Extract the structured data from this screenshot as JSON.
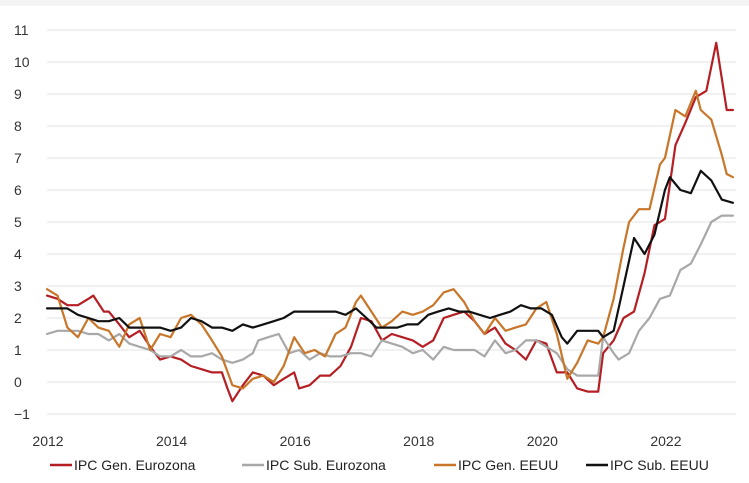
{
  "chart_data": {
    "type": "line",
    "title": "",
    "xlabel": "",
    "ylabel": "",
    "xlim": [
      2012,
      2023.15
    ],
    "ylim": [
      -1,
      11
    ],
    "y_ticks": [
      -1,
      0,
      1,
      2,
      3,
      4,
      5,
      6,
      7,
      8,
      9,
      10,
      11
    ],
    "x_ticks": [
      2012,
      2014,
      2016,
      2018,
      2020,
      2022
    ],
    "grid": "horizontal",
    "legend_position": "bottom",
    "series": [
      {
        "name": "IPC Gen. Eurozona",
        "color": "#b51f24",
        "points": [
          [
            2012.0,
            2.7
          ],
          [
            2012.17,
            2.6
          ],
          [
            2012.33,
            2.4
          ],
          [
            2012.5,
            2.4
          ],
          [
            2012.67,
            2.6
          ],
          [
            2012.75,
            2.7
          ],
          [
            2012.92,
            2.2
          ],
          [
            2013.0,
            2.2
          ],
          [
            2013.17,
            1.8
          ],
          [
            2013.33,
            1.4
          ],
          [
            2013.5,
            1.6
          ],
          [
            2013.67,
            1.1
          ],
          [
            2013.83,
            0.7
          ],
          [
            2014.0,
            0.8
          ],
          [
            2014.17,
            0.7
          ],
          [
            2014.33,
            0.5
          ],
          [
            2014.5,
            0.4
          ],
          [
            2014.67,
            0.3
          ],
          [
            2014.83,
            0.3
          ],
          [
            2014.92,
            -0.2
          ],
          [
            2015.0,
            -0.6
          ],
          [
            2015.17,
            -0.1
          ],
          [
            2015.33,
            0.3
          ],
          [
            2015.5,
            0.2
          ],
          [
            2015.67,
            -0.1
          ],
          [
            2015.83,
            0.1
          ],
          [
            2016.0,
            0.3
          ],
          [
            2016.08,
            -0.2
          ],
          [
            2016.25,
            -0.1
          ],
          [
            2016.42,
            0.2
          ],
          [
            2016.58,
            0.2
          ],
          [
            2016.75,
            0.5
          ],
          [
            2016.92,
            1.1
          ],
          [
            2017.08,
            2.0
          ],
          [
            2017.25,
            1.9
          ],
          [
            2017.42,
            1.3
          ],
          [
            2017.58,
            1.5
          ],
          [
            2017.75,
            1.4
          ],
          [
            2017.92,
            1.3
          ],
          [
            2018.08,
            1.1
          ],
          [
            2018.25,
            1.3
          ],
          [
            2018.42,
            2.0
          ],
          [
            2018.58,
            2.1
          ],
          [
            2018.75,
            2.2
          ],
          [
            2018.92,
            1.9
          ],
          [
            2019.08,
            1.5
          ],
          [
            2019.25,
            1.7
          ],
          [
            2019.42,
            1.2
          ],
          [
            2019.58,
            1.0
          ],
          [
            2019.75,
            0.7
          ],
          [
            2019.92,
            1.3
          ],
          [
            2020.08,
            1.2
          ],
          [
            2020.25,
            0.3
          ],
          [
            2020.42,
            0.3
          ],
          [
            2020.58,
            -0.2
          ],
          [
            2020.75,
            -0.3
          ],
          [
            2020.92,
            -0.3
          ],
          [
            2021.0,
            0.9
          ],
          [
            2021.17,
            1.3
          ],
          [
            2021.33,
            2.0
          ],
          [
            2021.5,
            2.2
          ],
          [
            2021.67,
            3.4
          ],
          [
            2021.83,
            4.9
          ],
          [
            2021.92,
            5.0
          ],
          [
            2022.0,
            5.1
          ],
          [
            2022.17,
            7.4
          ],
          [
            2022.33,
            8.1
          ],
          [
            2022.5,
            8.9
          ],
          [
            2022.67,
            9.1
          ],
          [
            2022.83,
            10.6
          ],
          [
            2023.0,
            8.5
          ],
          [
            2023.1,
            8.5
          ]
        ]
      },
      {
        "name": "IPC Sub. Eurozona",
        "color": "#a8a8a8",
        "points": [
          [
            2012.0,
            1.5
          ],
          [
            2012.17,
            1.6
          ],
          [
            2012.33,
            1.6
          ],
          [
            2012.5,
            1.6
          ],
          [
            2012.67,
            1.5
          ],
          [
            2012.83,
            1.5
          ],
          [
            2013.0,
            1.3
          ],
          [
            2013.17,
            1.5
          ],
          [
            2013.33,
            1.2
          ],
          [
            2013.5,
            1.1
          ],
          [
            2013.67,
            1.0
          ],
          [
            2013.83,
            0.8
          ],
          [
            2014.0,
            0.8
          ],
          [
            2014.17,
            1.0
          ],
          [
            2014.33,
            0.8
          ],
          [
            2014.5,
            0.8
          ],
          [
            2014.67,
            0.9
          ],
          [
            2014.83,
            0.7
          ],
          [
            2015.0,
            0.6
          ],
          [
            2015.17,
            0.7
          ],
          [
            2015.33,
            0.9
          ],
          [
            2015.42,
            1.3
          ],
          [
            2015.58,
            1.4
          ],
          [
            2015.75,
            1.5
          ],
          [
            2015.92,
            0.9
          ],
          [
            2016.08,
            1.0
          ],
          [
            2016.25,
            0.7
          ],
          [
            2016.42,
            0.9
          ],
          [
            2016.58,
            0.8
          ],
          [
            2016.75,
            0.8
          ],
          [
            2016.92,
            0.9
          ],
          [
            2017.08,
            0.9
          ],
          [
            2017.25,
            0.8
          ],
          [
            2017.42,
            1.3
          ],
          [
            2017.58,
            1.2
          ],
          [
            2017.75,
            1.1
          ],
          [
            2017.92,
            0.9
          ],
          [
            2018.08,
            1.0
          ],
          [
            2018.25,
            0.7
          ],
          [
            2018.42,
            1.1
          ],
          [
            2018.58,
            1.0
          ],
          [
            2018.75,
            1.0
          ],
          [
            2018.92,
            1.0
          ],
          [
            2019.08,
            0.8
          ],
          [
            2019.25,
            1.3
          ],
          [
            2019.42,
            0.9
          ],
          [
            2019.58,
            1.0
          ],
          [
            2019.75,
            1.3
          ],
          [
            2019.92,
            1.3
          ],
          [
            2020.08,
            1.1
          ],
          [
            2020.25,
            0.9
          ],
          [
            2020.42,
            0.4
          ],
          [
            2020.58,
            0.2
          ],
          [
            2020.75,
            0.2
          ],
          [
            2020.92,
            0.2
          ],
          [
            2021.0,
            1.4
          ],
          [
            2021.17,
            0.9
          ],
          [
            2021.25,
            0.7
          ],
          [
            2021.42,
            0.9
          ],
          [
            2021.58,
            1.6
          ],
          [
            2021.75,
            2.0
          ],
          [
            2021.92,
            2.6
          ],
          [
            2022.08,
            2.7
          ],
          [
            2022.25,
            3.5
          ],
          [
            2022.42,
            3.7
          ],
          [
            2022.58,
            4.3
          ],
          [
            2022.75,
            5.0
          ],
          [
            2022.92,
            5.2
          ],
          [
            2023.1,
            5.2
          ]
        ]
      },
      {
        "name": "IPC Gen. EEUU",
        "color": "#c8762a",
        "points": [
          [
            2012.0,
            2.9
          ],
          [
            2012.17,
            2.7
          ],
          [
            2012.33,
            1.7
          ],
          [
            2012.5,
            1.4
          ],
          [
            2012.67,
            2.0
          ],
          [
            2012.83,
            1.7
          ],
          [
            2013.0,
            1.6
          ],
          [
            2013.17,
            1.1
          ],
          [
            2013.33,
            1.8
          ],
          [
            2013.5,
            2.0
          ],
          [
            2013.67,
            1.0
          ],
          [
            2013.83,
            1.5
          ],
          [
            2014.0,
            1.4
          ],
          [
            2014.17,
            2.0
          ],
          [
            2014.33,
            2.1
          ],
          [
            2014.5,
            1.8
          ],
          [
            2014.67,
            1.3
          ],
          [
            2014.83,
            0.8
          ],
          [
            2015.0,
            -0.1
          ],
          [
            2015.17,
            -0.2
          ],
          [
            2015.33,
            0.1
          ],
          [
            2015.5,
            0.2
          ],
          [
            2015.67,
            0.0
          ],
          [
            2015.83,
            0.5
          ],
          [
            2016.0,
            1.4
          ],
          [
            2016.17,
            0.9
          ],
          [
            2016.33,
            1.0
          ],
          [
            2016.5,
            0.8
          ],
          [
            2016.67,
            1.5
          ],
          [
            2016.83,
            1.7
          ],
          [
            2017.0,
            2.5
          ],
          [
            2017.08,
            2.7
          ],
          [
            2017.25,
            2.2
          ],
          [
            2017.42,
            1.7
          ],
          [
            2017.58,
            1.9
          ],
          [
            2017.75,
            2.2
          ],
          [
            2017.92,
            2.1
          ],
          [
            2018.08,
            2.2
          ],
          [
            2018.25,
            2.4
          ],
          [
            2018.42,
            2.8
          ],
          [
            2018.58,
            2.9
          ],
          [
            2018.75,
            2.5
          ],
          [
            2018.92,
            1.9
          ],
          [
            2019.08,
            1.5
          ],
          [
            2019.25,
            2.0
          ],
          [
            2019.42,
            1.6
          ],
          [
            2019.58,
            1.7
          ],
          [
            2019.75,
            1.8
          ],
          [
            2019.92,
            2.3
          ],
          [
            2020.08,
            2.5
          ],
          [
            2020.25,
            1.5
          ],
          [
            2020.42,
            0.1
          ],
          [
            2020.58,
            0.6
          ],
          [
            2020.75,
            1.3
          ],
          [
            2020.92,
            1.2
          ],
          [
            2021.0,
            1.4
          ],
          [
            2021.17,
            2.6
          ],
          [
            2021.33,
            4.2
          ],
          [
            2021.42,
            5.0
          ],
          [
            2021.58,
            5.4
          ],
          [
            2021.75,
            5.4
          ],
          [
            2021.92,
            6.8
          ],
          [
            2022.0,
            7.0
          ],
          [
            2022.17,
            8.5
          ],
          [
            2022.33,
            8.3
          ],
          [
            2022.5,
            9.1
          ],
          [
            2022.58,
            8.5
          ],
          [
            2022.75,
            8.2
          ],
          [
            2022.92,
            7.1
          ],
          [
            2023.0,
            6.5
          ],
          [
            2023.1,
            6.4
          ]
        ]
      },
      {
        "name": "IPC Sub. EEUU",
        "color": "#111111",
        "points": [
          [
            2012.0,
            2.3
          ],
          [
            2012.17,
            2.3
          ],
          [
            2012.33,
            2.3
          ],
          [
            2012.5,
            2.1
          ],
          [
            2012.67,
            2.0
          ],
          [
            2012.83,
            1.9
          ],
          [
            2013.0,
            1.9
          ],
          [
            2013.17,
            2.0
          ],
          [
            2013.33,
            1.7
          ],
          [
            2013.5,
            1.7
          ],
          [
            2013.67,
            1.7
          ],
          [
            2013.83,
            1.7
          ],
          [
            2014.0,
            1.6
          ],
          [
            2014.17,
            1.7
          ],
          [
            2014.33,
            2.0
          ],
          [
            2014.5,
            1.9
          ],
          [
            2014.67,
            1.7
          ],
          [
            2014.83,
            1.7
          ],
          [
            2015.0,
            1.6
          ],
          [
            2015.17,
            1.8
          ],
          [
            2015.33,
            1.7
          ],
          [
            2015.5,
            1.8
          ],
          [
            2015.67,
            1.9
          ],
          [
            2015.83,
            2.0
          ],
          [
            2016.0,
            2.2
          ],
          [
            2016.17,
            2.2
          ],
          [
            2016.33,
            2.2
          ],
          [
            2016.5,
            2.2
          ],
          [
            2016.67,
            2.2
          ],
          [
            2016.83,
            2.1
          ],
          [
            2017.0,
            2.3
          ],
          [
            2017.17,
            2.0
          ],
          [
            2017.33,
            1.7
          ],
          [
            2017.5,
            1.7
          ],
          [
            2017.67,
            1.7
          ],
          [
            2017.83,
            1.8
          ],
          [
            2018.0,
            1.8
          ],
          [
            2018.17,
            2.1
          ],
          [
            2018.33,
            2.2
          ],
          [
            2018.5,
            2.3
          ],
          [
            2018.67,
            2.2
          ],
          [
            2018.83,
            2.2
          ],
          [
            2019.0,
            2.1
          ],
          [
            2019.17,
            2.0
          ],
          [
            2019.33,
            2.1
          ],
          [
            2019.5,
            2.2
          ],
          [
            2019.67,
            2.4
          ],
          [
            2019.83,
            2.3
          ],
          [
            2020.0,
            2.3
          ],
          [
            2020.17,
            2.1
          ],
          [
            2020.33,
            1.4
          ],
          [
            2020.42,
            1.2
          ],
          [
            2020.58,
            1.6
          ],
          [
            2020.75,
            1.6
          ],
          [
            2020.92,
            1.6
          ],
          [
            2021.0,
            1.4
          ],
          [
            2021.17,
            1.6
          ],
          [
            2021.33,
            3.0
          ],
          [
            2021.5,
            4.5
          ],
          [
            2021.67,
            4.0
          ],
          [
            2021.83,
            4.6
          ],
          [
            2022.0,
            6.0
          ],
          [
            2022.08,
            6.4
          ],
          [
            2022.25,
            6.0
          ],
          [
            2022.42,
            5.9
          ],
          [
            2022.58,
            6.6
          ],
          [
            2022.75,
            6.3
          ],
          [
            2022.92,
            5.7
          ],
          [
            2023.1,
            5.6
          ]
        ]
      }
    ]
  }
}
